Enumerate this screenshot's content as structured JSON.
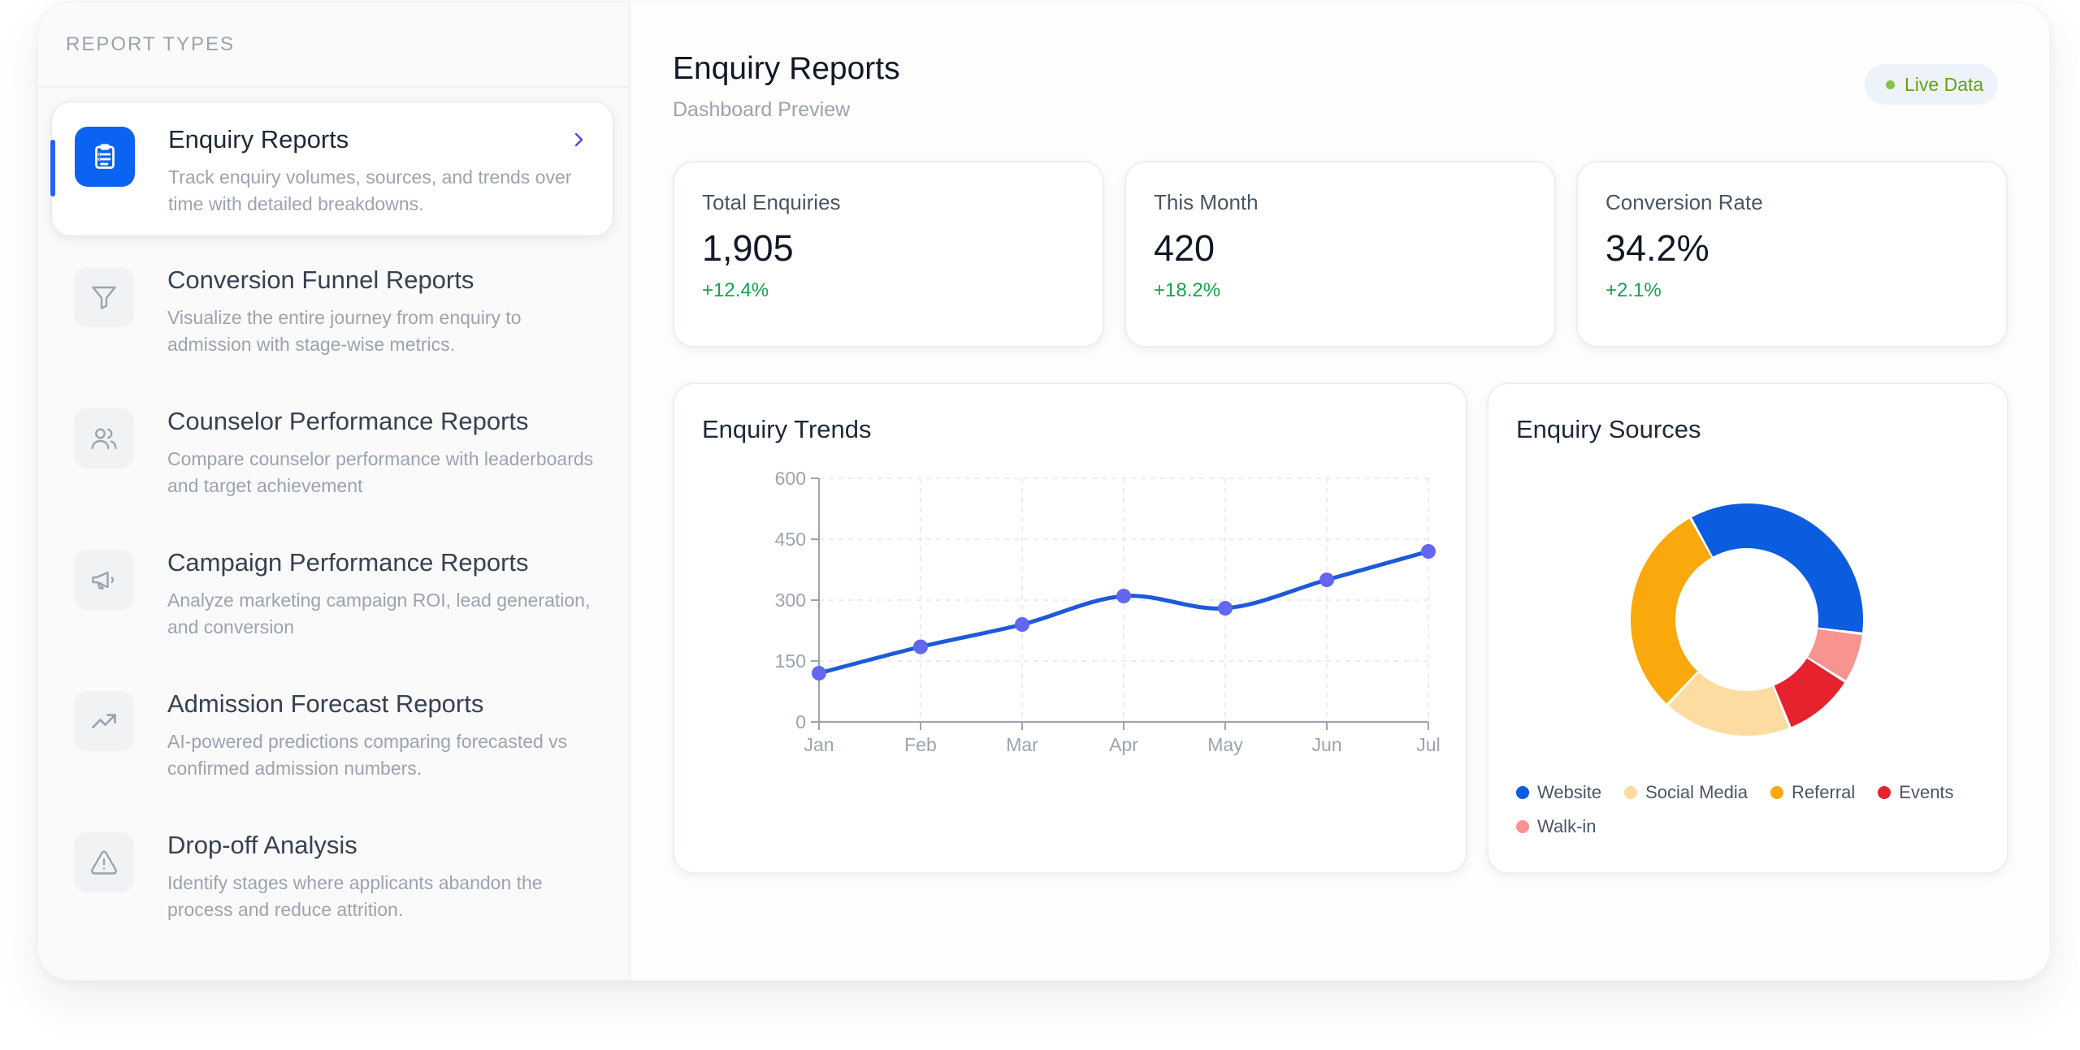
{
  "sidebar": {
    "heading": "REPORT TYPES",
    "items": [
      {
        "title": "Enquiry Reports",
        "desc": "Track enquiry volumes, sources, and trends over time with detailed breakdowns.",
        "icon": "clipboard-icon",
        "active": true
      },
      {
        "title": "Conversion Funnel Reports",
        "desc": "Visualize the entire journey from enquiry to admission with stage-wise metrics.",
        "icon": "funnel-icon"
      },
      {
        "title": "Counselor Performance Reports",
        "desc": "Compare counselor performance with leaderboards and target achievement",
        "icon": "users-icon"
      },
      {
        "title": "Campaign Performance Reports",
        "desc": "Analyze marketing campaign ROI, lead generation, and conversion",
        "icon": "megaphone-icon"
      },
      {
        "title": "Admission Forecast Reports",
        "desc": "AI-powered predictions comparing forecasted vs confirmed admission numbers.",
        "icon": "trending-up-icon"
      },
      {
        "title": "Drop-off Analysis",
        "desc": "Identify stages where applicants abandon the process and reduce attrition.",
        "icon": "warning-icon"
      }
    ]
  },
  "main": {
    "title": "Enquiry Reports",
    "subtitle": "Dashboard Preview",
    "live_badge": "Live Data"
  },
  "stats": [
    {
      "label": "Total Enquiries",
      "value": "1,905",
      "change": "+12.4%"
    },
    {
      "label": "This Month",
      "value": "420",
      "change": "+18.2%"
    },
    {
      "label": "Conversion Rate",
      "value": "34.2%",
      "change": "+2.1%"
    }
  ],
  "colors": {
    "accent": "#0b63f3",
    "positive": "#16a34a",
    "line": "#1d5ad8",
    "point": "#6366f1"
  },
  "chart_data": [
    {
      "type": "line",
      "title": "Enquiry Trends",
      "categories": [
        "Jan",
        "Feb",
        "Mar",
        "Apr",
        "May",
        "Jun",
        "Jul"
      ],
      "series": [
        {
          "values": [
            120,
            185,
            240,
            310,
            280,
            350,
            420
          ]
        }
      ],
      "yticks": [
        0,
        150,
        300,
        450,
        600
      ],
      "ylim": [
        0,
        600
      ],
      "grid": true
    },
    {
      "type": "pie",
      "title": "Enquiry Sources",
      "donut": true,
      "slices": [
        {
          "label": "Website",
          "value": 35,
          "color": "#0b5cde"
        },
        {
          "label": "Walk-in",
          "value": 7,
          "color": "#f89490"
        },
        {
          "label": "Events",
          "value": 10,
          "color": "#e5222d"
        },
        {
          "label": "Social Media",
          "value": 18,
          "color": "#fddca1"
        },
        {
          "label": "Referral",
          "value": 30,
          "color": "#f9a90c"
        }
      ],
      "legend": [
        "Website",
        "Social Media",
        "Referral",
        "Events",
        "Walk-in"
      ],
      "legend_position": "bottom"
    }
  ]
}
